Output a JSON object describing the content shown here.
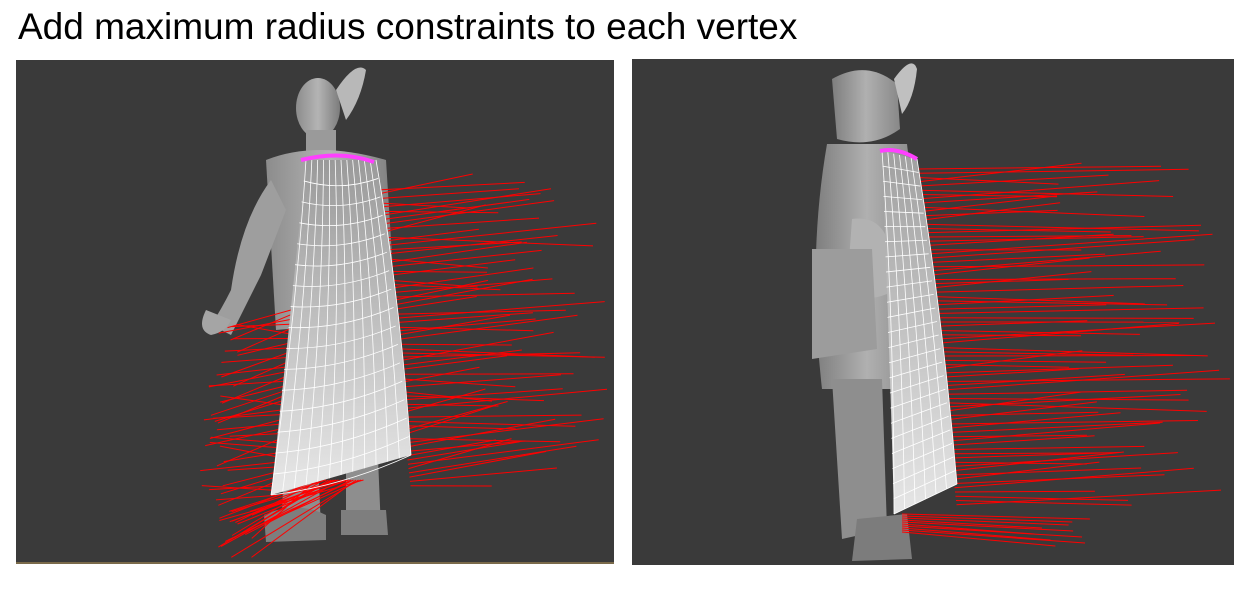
{
  "slide": {
    "title": "Add maximum radius constraints to each vertex"
  },
  "viewports": [
    {
      "view": "back-three-quarter",
      "background": "#3a3a3a"
    },
    {
      "view": "side-profile",
      "background": "#3a3a3a"
    }
  ],
  "colors": {
    "background": "#3a3a3a",
    "character": "#a8a8a8",
    "cape": "#dcdcdc",
    "mesh_lines": "#ffffff",
    "radius_constraints": "#ff0000",
    "pinned_vertices": "#ff40ff"
  }
}
